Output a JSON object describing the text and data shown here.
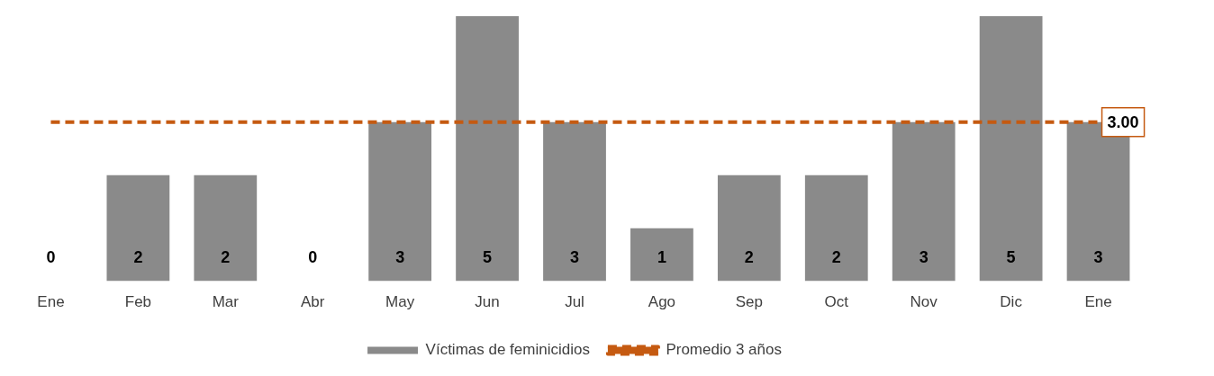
{
  "chart_data": {
    "type": "bar",
    "categories": [
      "Ene",
      "Feb",
      "Mar",
      "Abr",
      "May",
      "Jun",
      "Jul",
      "Ago",
      "Sep",
      "Oct",
      "Nov",
      "Dic",
      "Ene"
    ],
    "series": [
      {
        "name": "Víctimas de feminicidios",
        "color": "#8a8a8a",
        "values": [
          0,
          2,
          2,
          0,
          3,
          5,
          3,
          1,
          2,
          2,
          3,
          5,
          3
        ],
        "value_labels": [
          "0",
          "2",
          "2",
          "0",
          "3",
          "5",
          "3",
          "1",
          "2",
          "2",
          "3",
          "5",
          "3"
        ]
      },
      {
        "name": "Promedio 3 años",
        "type": "line",
        "color": "#c55a11",
        "line_style": "dashed",
        "marker": "none",
        "values": [
          3,
          3,
          3,
          3,
          3,
          3,
          3,
          3,
          3,
          3,
          3,
          3,
          3
        ],
        "value_labels": [
          null,
          null,
          null,
          null,
          null,
          null,
          null,
          null,
          null,
          null,
          null,
          null,
          "3.00"
        ]
      }
    ],
    "legend": "bottom",
    "grid": false
  }
}
